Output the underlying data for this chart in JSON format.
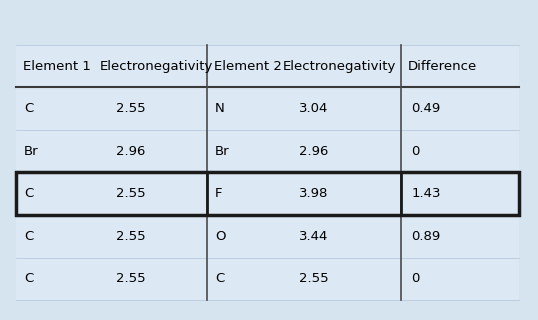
{
  "headers": [
    "Element 1",
    "Electronegativity",
    "Element 2",
    "Electronegativity",
    "Difference"
  ],
  "rows": [
    [
      "C",
      "2.55",
      "N",
      "3.04",
      "0.49"
    ],
    [
      "Br",
      "2.96",
      "Br",
      "2.96",
      "0"
    ],
    [
      "C",
      "2.55",
      "F",
      "3.98",
      "1.43"
    ],
    [
      "C",
      "2.55",
      "O",
      "3.44",
      "0.89"
    ],
    [
      "C",
      "2.55",
      "C",
      "2.55",
      "0"
    ]
  ],
  "highlighted_row": 2,
  "bg_color": "#d6e4f0",
  "cell_bg": "#dce8f3",
  "header_color": "#000000",
  "text_color": "#000000",
  "font_size": 9.5,
  "header_font_size": 9.5
}
